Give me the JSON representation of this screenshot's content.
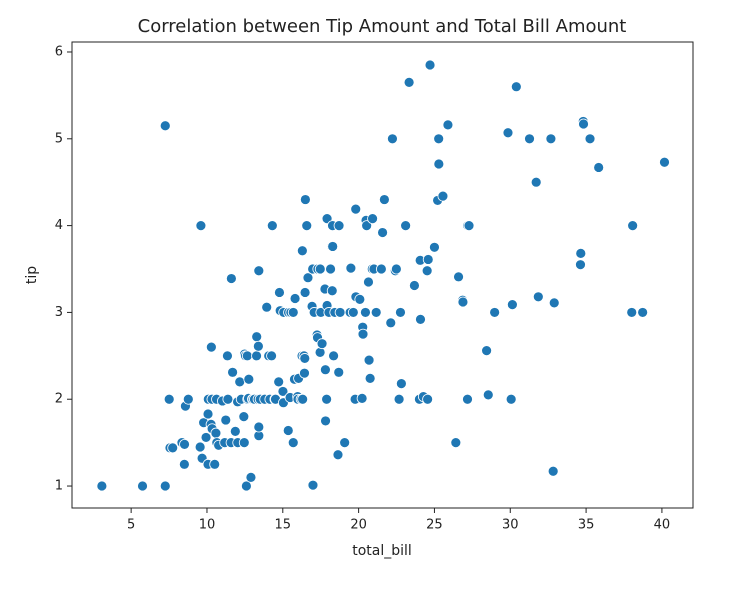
{
  "chart_data": {
    "type": "scatter",
    "title": "Correlation between Tip Amount and Total Bill Amount",
    "x_label": "total_bill",
    "y_label": "tip",
    "color": "#1f77b4",
    "xlim": [
      1.1,
      42.05
    ],
    "ylim": [
      0.747,
      6.115
    ],
    "xticks": [
      5,
      10,
      15,
      20,
      25,
      30,
      35,
      40
    ],
    "yticks": [
      1,
      2,
      3,
      4,
      5,
      6
    ],
    "x": [
      3.07,
      5.75,
      7.25,
      7.25,
      7.51,
      7.56,
      7.74,
      8.35,
      8.51,
      8.52,
      8.58,
      8.77,
      9.55,
      9.6,
      9.68,
      9.78,
      9.94,
      10.07,
      10.07,
      10.09,
      10.27,
      10.29,
      10.33,
      10.34,
      10.51,
      10.59,
      10.63,
      10.65,
      10.77,
      11.02,
      11.17,
      11.24,
      11.35,
      11.38,
      11.59,
      11.61,
      11.69,
      11.87,
      12.02,
      12.03,
      12.16,
      12.26,
      12.43,
      12.46,
      12.48,
      12.54,
      12.6,
      12.66,
      12.69,
      12.74,
      12.76,
      12.9,
      13.0,
      13.03,
      13.13,
      13.27,
      13.28,
      13.37,
      13.39,
      13.42,
      13.42,
      13.42,
      13.51,
      13.81,
      13.94,
      14.07,
      14.15,
      14.26,
      14.31,
      14.48,
      14.52,
      14.73,
      14.78,
      14.83,
      15.01,
      15.04,
      15.06,
      15.36,
      15.38,
      15.48,
      15.53,
      15.69,
      15.69,
      15.77,
      15.81,
      15.98,
      16.0,
      16.04,
      16.21,
      16.27,
      16.29,
      16.31,
      16.4,
      16.43,
      16.45,
      16.47,
      16.49,
      16.58,
      16.66,
      16.93,
      16.97,
      16.99,
      17.07,
      17.26,
      17.29,
      17.31,
      17.46,
      17.47,
      17.51,
      17.59,
      17.78,
      17.81,
      17.82,
      17.89,
      17.92,
      17.92,
      18.04,
      18.15,
      18.24,
      18.26,
      18.28,
      18.29,
      18.35,
      18.43,
      18.64,
      18.69,
      18.71,
      18.78,
      19.08,
      19.44,
      19.49,
      19.65,
      19.77,
      19.81,
      19.82,
      20.08,
      20.23,
      20.27,
      20.29,
      20.45,
      20.49,
      20.53,
      20.65,
      20.69,
      20.76,
      20.9,
      20.92,
      21.01,
      21.16,
      21.5,
      21.58,
      21.7,
      22.12,
      22.23,
      22.42,
      22.49,
      22.67,
      22.76,
      22.82,
      23.1,
      23.33,
      23.68,
      24.01,
      24.06,
      24.08,
      24.27,
      24.52,
      24.55,
      24.59,
      24.71,
      25.0,
      25.21,
      25.28,
      25.29,
      25.56,
      25.89,
      26.41,
      26.59,
      26.86,
      26.88,
      27.18,
      27.2,
      27.28,
      28.44,
      28.55,
      28.97,
      29.85,
      30.06,
      30.14,
      30.4,
      31.27,
      31.71,
      31.85,
      32.68,
      32.83,
      32.9,
      34.63,
      34.65,
      34.81,
      34.83,
      35.26,
      35.83,
      38.01,
      38.07,
      38.73,
      40.17
    ],
    "y": [
      1.0,
      1.0,
      1.0,
      5.15,
      2.0,
      1.44,
      1.44,
      1.5,
      1.25,
      1.48,
      1.92,
      2.0,
      1.45,
      4.0,
      1.32,
      1.73,
      1.56,
      1.83,
      1.25,
      2.0,
      1.71,
      2.6,
      2.0,
      1.66,
      1.25,
      1.61,
      2.0,
      1.5,
      1.47,
      1.98,
      1.5,
      1.76,
      2.5,
      2.0,
      1.5,
      3.39,
      2.31,
      1.63,
      1.97,
      1.5,
      2.2,
      2.0,
      1.8,
      1.5,
      2.52,
      2.5,
      1.0,
      2.5,
      2.0,
      2.01,
      2.23,
      1.1,
      2.0,
      2.0,
      2.0,
      2.5,
      2.72,
      2.0,
      2.61,
      3.48,
      1.58,
      1.68,
      2.0,
      2.0,
      3.06,
      2.5,
      2.0,
      2.5,
      4.0,
      2.0,
      2.0,
      2.2,
      3.23,
      3.02,
      2.09,
      1.96,
      3.0,
      1.64,
      3.0,
      2.02,
      3.0,
      1.5,
      3.0,
      2.23,
      3.16,
      2.03,
      2.0,
      2.24,
      2.0,
      2.5,
      3.71,
      2.0,
      2.5,
      2.3,
      2.47,
      3.23,
      4.3,
      4.0,
      3.4,
      3.07,
      3.5,
      1.01,
      3.0,
      2.74,
      2.71,
      3.5,
      2.54,
      3.5,
      3.0,
      2.64,
      3.27,
      2.34,
      1.75,
      2.0,
      4.08,
      3.08,
      3.0,
      3.5,
      3.76,
      3.25,
      4.0,
      3.76,
      2.5,
      3.0,
      1.36,
      2.31,
      4.0,
      3.0,
      1.5,
      3.0,
      3.51,
      3.0,
      2.0,
      4.19,
      3.18,
      3.15,
      2.01,
      2.83,
      2.75,
      3.0,
      4.06,
      4.0,
      3.35,
      2.45,
      2.24,
      3.5,
      4.08,
      3.5,
      3.0,
      3.5,
      3.92,
      4.3,
      2.88,
      5.0,
      3.48,
      3.5,
      2.0,
      3.0,
      2.18,
      4.0,
      5.65,
      3.31,
      2.0,
      3.6,
      2.92,
      2.03,
      3.48,
      2.0,
      3.61,
      5.85,
      3.75,
      4.29,
      5.0,
      4.71,
      4.34,
      5.16,
      1.5,
      3.41,
      3.14,
      3.12,
      2.0,
      4.0,
      4.0,
      2.56,
      2.05,
      3.0,
      5.07,
      2.0,
      3.09,
      5.6,
      5.0,
      4.5,
      3.18,
      5.0,
      1.17,
      3.11,
      3.55,
      3.68,
      5.2,
      5.17,
      5.0,
      4.67,
      3.0,
      4.0,
      3.0,
      4.73
    ]
  }
}
